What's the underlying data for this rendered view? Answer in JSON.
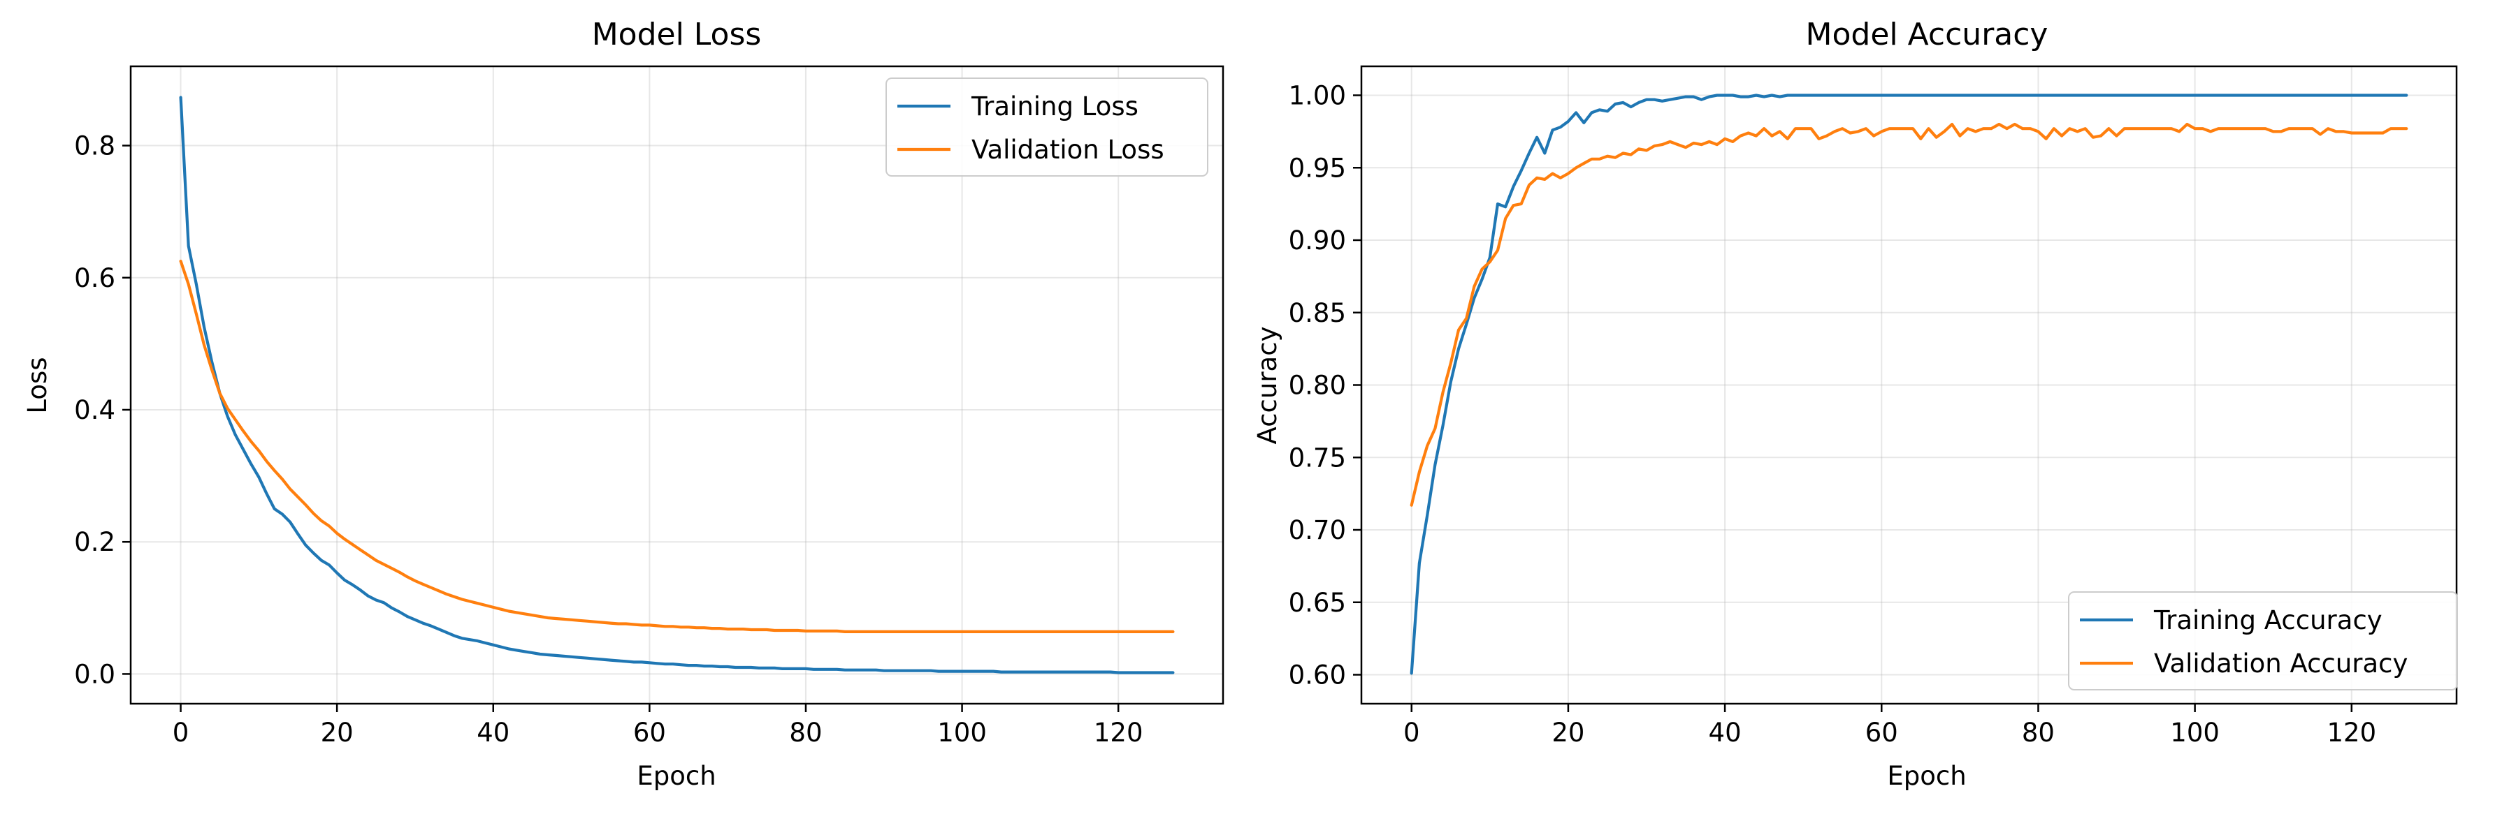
{
  "chart_data": [
    {
      "type": "line",
      "title": "Model Loss",
      "xlabel": "Epoch",
      "ylabel": "Loss",
      "xlim": [
        -6.4,
        133.4
      ],
      "ylim": [
        -0.045,
        0.92
      ],
      "xticks": [
        0,
        20,
        40,
        60,
        80,
        100,
        120
      ],
      "yticks": [
        0.0,
        0.2,
        0.4,
        0.6,
        0.8
      ],
      "ytick_labels": [
        "0.0",
        "0.2",
        "0.4",
        "0.6",
        "0.8"
      ],
      "grid": true,
      "legend_position": "upper right",
      "x_start": 0,
      "series": [
        {
          "name": "Training Loss",
          "color": "#1f77b4",
          "values": [
            0.873,
            0.648,
            0.59,
            0.525,
            0.472,
            0.425,
            0.39,
            0.362,
            0.34,
            0.318,
            0.298,
            0.273,
            0.25,
            0.242,
            0.23,
            0.212,
            0.195,
            0.183,
            0.172,
            0.165,
            0.153,
            0.142,
            0.135,
            0.127,
            0.118,
            0.112,
            0.108,
            0.1,
            0.094,
            0.087,
            0.082,
            0.077,
            0.073,
            0.068,
            0.063,
            0.058,
            0.054,
            0.052,
            0.05,
            0.047,
            0.044,
            0.041,
            0.038,
            0.036,
            0.034,
            0.032,
            0.03,
            0.029,
            0.028,
            0.027,
            0.026,
            0.025,
            0.024,
            0.023,
            0.022,
            0.021,
            0.02,
            0.019,
            0.018,
            0.018,
            0.017,
            0.016,
            0.015,
            0.015,
            0.014,
            0.013,
            0.013,
            0.012,
            0.012,
            0.011,
            0.011,
            0.01,
            0.01,
            0.01,
            0.009,
            0.009,
            0.009,
            0.008,
            0.008,
            0.008,
            0.008,
            0.007,
            0.007,
            0.007,
            0.007,
            0.006,
            0.006,
            0.006,
            0.006,
            0.006,
            0.005,
            0.005,
            0.005,
            0.005,
            0.005,
            0.005,
            0.005,
            0.004,
            0.004,
            0.004,
            0.004,
            0.004,
            0.004,
            0.004,
            0.004,
            0.003,
            0.003,
            0.003,
            0.003,
            0.003,
            0.003,
            0.003,
            0.003,
            0.003,
            0.003,
            0.003,
            0.003,
            0.003,
            0.003,
            0.003,
            0.002,
            0.002,
            0.002,
            0.002,
            0.002,
            0.002,
            0.002,
            0.002
          ]
        },
        {
          "name": "Validation Loss",
          "color": "#ff7f0e",
          "values": [
            0.625,
            0.59,
            0.545,
            0.498,
            0.46,
            0.425,
            0.402,
            0.385,
            0.368,
            0.352,
            0.338,
            0.322,
            0.308,
            0.295,
            0.28,
            0.268,
            0.256,
            0.243,
            0.232,
            0.224,
            0.213,
            0.204,
            0.196,
            0.188,
            0.18,
            0.172,
            0.166,
            0.16,
            0.154,
            0.147,
            0.141,
            0.136,
            0.131,
            0.126,
            0.121,
            0.117,
            0.113,
            0.11,
            0.107,
            0.104,
            0.101,
            0.098,
            0.095,
            0.093,
            0.091,
            0.089,
            0.087,
            0.085,
            0.084,
            0.083,
            0.082,
            0.081,
            0.08,
            0.079,
            0.078,
            0.077,
            0.076,
            0.076,
            0.075,
            0.074,
            0.074,
            0.073,
            0.072,
            0.072,
            0.071,
            0.071,
            0.07,
            0.07,
            0.069,
            0.069,
            0.068,
            0.068,
            0.068,
            0.067,
            0.067,
            0.067,
            0.066,
            0.066,
            0.066,
            0.066,
            0.065,
            0.065,
            0.065,
            0.065,
            0.065,
            0.064,
            0.064,
            0.064,
            0.064,
            0.064,
            0.064,
            0.064,
            0.064,
            0.064,
            0.064,
            0.064,
            0.064,
            0.064,
            0.064,
            0.064,
            0.064,
            0.064,
            0.064,
            0.064,
            0.064,
            0.064,
            0.064,
            0.064,
            0.064,
            0.064,
            0.064,
            0.064,
            0.064,
            0.064,
            0.064,
            0.064,
            0.064,
            0.064,
            0.064,
            0.064,
            0.064,
            0.064,
            0.064,
            0.064,
            0.064,
            0.064,
            0.064,
            0.064
          ]
        }
      ]
    },
    {
      "type": "line",
      "title": "Model Accuracy",
      "xlabel": "Epoch",
      "ylabel": "Accuracy",
      "xlim": [
        -6.4,
        133.4
      ],
      "ylim": [
        0.58,
        1.02
      ],
      "xticks": [
        0,
        20,
        40,
        60,
        80,
        100,
        120
      ],
      "yticks": [
        0.6,
        0.65,
        0.7,
        0.75,
        0.8,
        0.85,
        0.9,
        0.95,
        1.0
      ],
      "ytick_labels": [
        "0.60",
        "0.65",
        "0.70",
        "0.75",
        "0.80",
        "0.85",
        "0.90",
        "0.95",
        "1.00"
      ],
      "grid": true,
      "legend_position": "lower right",
      "x_start": 0,
      "series": [
        {
          "name": "Training Accuracy",
          "color": "#1f77b4",
          "values": [
            0.601,
            0.677,
            0.71,
            0.745,
            0.772,
            0.802,
            0.825,
            0.842,
            0.86,
            0.873,
            0.888,
            0.925,
            0.923,
            0.937,
            0.948,
            0.96,
            0.971,
            0.96,
            0.976,
            0.978,
            0.982,
            0.988,
            0.981,
            0.988,
            0.99,
            0.989,
            0.994,
            0.995,
            0.992,
            0.995,
            0.997,
            0.997,
            0.996,
            0.997,
            0.998,
            0.999,
            0.999,
            0.997,
            0.999,
            1.0,
            1.0,
            1.0,
            0.999,
            0.999,
            1.0,
            0.999,
            1.0,
            0.999,
            1.0,
            1.0,
            1.0,
            1.0,
            1.0,
            1.0,
            1.0,
            1.0,
            1.0,
            1.0,
            1.0,
            1.0,
            1.0,
            1.0,
            1.0,
            1.0,
            1.0,
            1.0,
            1.0,
            1.0,
            1.0,
            1.0,
            1.0,
            1.0,
            1.0,
            1.0,
            1.0,
            1.0,
            1.0,
            1.0,
            1.0,
            1.0,
            1.0,
            1.0,
            1.0,
            1.0,
            1.0,
            1.0,
            1.0,
            1.0,
            1.0,
            1.0,
            1.0,
            1.0,
            1.0,
            1.0,
            1.0,
            1.0,
            1.0,
            1.0,
            1.0,
            1.0,
            1.0,
            1.0,
            1.0,
            1.0,
            1.0,
            1.0,
            1.0,
            1.0,
            1.0,
            1.0,
            1.0,
            1.0,
            1.0,
            1.0,
            1.0,
            1.0,
            1.0,
            1.0,
            1.0,
            1.0,
            1.0,
            1.0,
            1.0,
            1.0,
            1.0,
            1.0,
            1.0,
            1.0
          ]
        },
        {
          "name": "Validation Accuracy",
          "color": "#ff7f0e",
          "values": [
            0.717,
            0.74,
            0.758,
            0.77,
            0.795,
            0.815,
            0.838,
            0.846,
            0.868,
            0.88,
            0.885,
            0.893,
            0.915,
            0.924,
            0.925,
            0.938,
            0.943,
            0.942,
            0.946,
            0.943,
            0.946,
            0.95,
            0.953,
            0.956,
            0.956,
            0.958,
            0.957,
            0.96,
            0.959,
            0.963,
            0.962,
            0.965,
            0.966,
            0.968,
            0.966,
            0.964,
            0.967,
            0.966,
            0.968,
            0.966,
            0.97,
            0.968,
            0.972,
            0.974,
            0.972,
            0.977,
            0.972,
            0.975,
            0.97,
            0.977,
            0.977,
            0.977,
            0.97,
            0.972,
            0.975,
            0.977,
            0.974,
            0.975,
            0.977,
            0.972,
            0.975,
            0.977,
            0.977,
            0.977,
            0.977,
            0.97,
            0.977,
            0.971,
            0.975,
            0.98,
            0.972,
            0.977,
            0.975,
            0.977,
            0.977,
            0.98,
            0.977,
            0.98,
            0.977,
            0.977,
            0.975,
            0.97,
            0.977,
            0.972,
            0.977,
            0.975,
            0.977,
            0.971,
            0.972,
            0.977,
            0.972,
            0.977,
            0.977,
            0.977,
            0.977,
            0.977,
            0.977,
            0.977,
            0.975,
            0.98,
            0.977,
            0.977,
            0.975,
            0.977,
            0.977,
            0.977,
            0.977,
            0.977,
            0.977,
            0.977,
            0.975,
            0.975,
            0.977,
            0.977,
            0.977,
            0.977,
            0.973,
            0.977,
            0.975,
            0.975,
            0.974,
            0.974,
            0.974,
            0.974,
            0.974,
            0.977,
            0.977,
            0.977
          ]
        }
      ]
    }
  ]
}
